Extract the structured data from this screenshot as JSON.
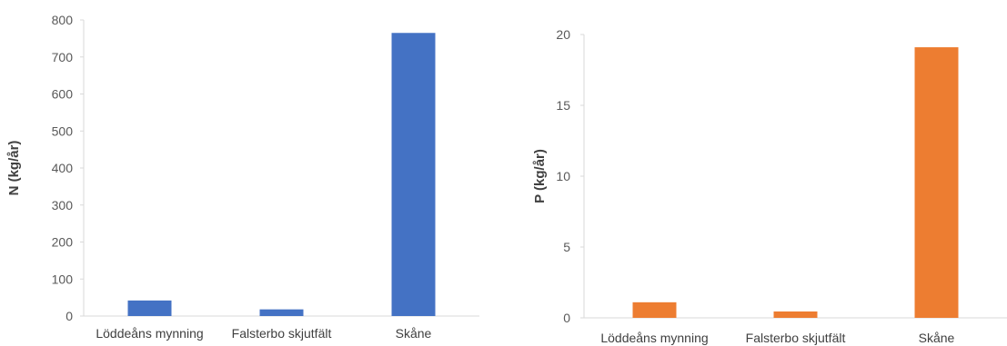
{
  "chart_data": [
    {
      "type": "bar",
      "categories": [
        "Löddeåns mynning",
        "Falsterbo skjutfält",
        "Skåne"
      ],
      "values": [
        42,
        18,
        765
      ],
      "xlabel": "",
      "ylabel": "N (kg/år)",
      "ylim": [
        0,
        800
      ],
      "yticks": [
        0,
        100,
        200,
        300,
        400,
        500,
        600,
        700,
        800
      ],
      "grid": false,
      "color": "#4472C4"
    },
    {
      "type": "bar",
      "categories": [
        "Löddeåns mynning",
        "Falsterbo skjutfält",
        "Skåne"
      ],
      "values": [
        1.1,
        0.45,
        19.1
      ],
      "xlabel": "",
      "ylabel": "P (kg/år)",
      "ylim": [
        0,
        20
      ],
      "yticks": [
        0,
        5,
        10,
        15,
        20
      ],
      "grid": false,
      "color": "#ED7D31"
    }
  ]
}
